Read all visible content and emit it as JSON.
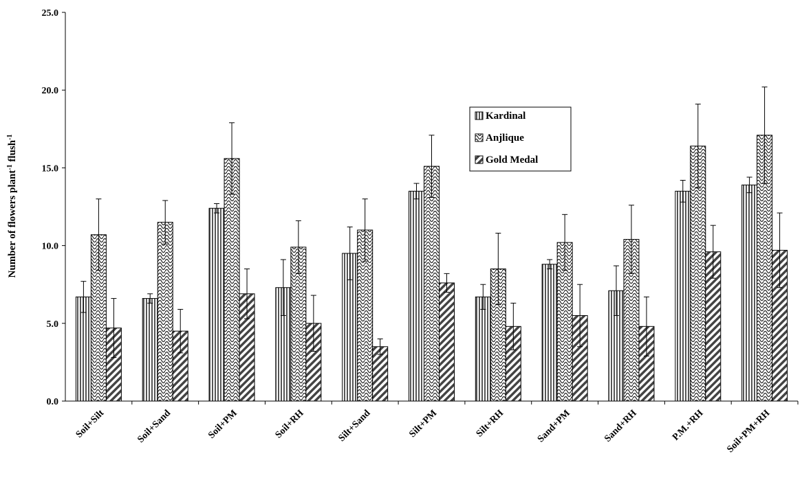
{
  "chart_data": {
    "type": "bar",
    "title": "",
    "xlabel": "",
    "ylabel_parts": [
      "Number of flowers plant",
      "-1",
      " flush",
      "-1"
    ],
    "ylim": [
      0,
      25
    ],
    "yticks": [
      "0.0",
      "5.0",
      "10.0",
      "15.0",
      "20.0",
      "25.0"
    ],
    "grid": false,
    "legend_position": "upper-center-right",
    "categories": [
      "Soil+Silt",
      "Soil+Sand",
      "Soil+PM",
      "Soil+RH",
      "Silt+Sand",
      "Silt+PM",
      "Silt+RH",
      "Sand+PM",
      "Sand+RH",
      "P.M.+RH",
      "Soil+PM+RH"
    ],
    "series": [
      {
        "name": "Kardinal",
        "pattern": "vertical-stripes",
        "values": [
          6.7,
          6.6,
          12.4,
          7.3,
          9.5,
          13.5,
          6.7,
          8.8,
          7.1,
          13.5,
          13.9
        ],
        "errors": [
          1.0,
          0.3,
          0.3,
          1.8,
          1.7,
          0.5,
          0.8,
          0.3,
          1.6,
          0.7,
          0.5
        ]
      },
      {
        "name": "Anjlique",
        "pattern": "wavy",
        "values": [
          10.7,
          11.5,
          15.6,
          9.9,
          11.0,
          15.1,
          8.5,
          10.2,
          10.4,
          16.4,
          17.1
        ],
        "errors": [
          2.3,
          1.4,
          2.3,
          1.7,
          2.0,
          2.0,
          2.3,
          1.8,
          2.2,
          2.7,
          3.1
        ]
      },
      {
        "name": "Gold Medal",
        "pattern": "diagonal-stripes",
        "values": [
          4.7,
          4.5,
          6.9,
          5.0,
          3.5,
          7.6,
          4.8,
          5.5,
          4.8,
          9.6,
          9.7
        ],
        "errors": [
          1.9,
          1.4,
          1.6,
          1.8,
          0.5,
          0.6,
          1.5,
          2.0,
          1.9,
          1.7,
          2.4
        ]
      }
    ]
  }
}
